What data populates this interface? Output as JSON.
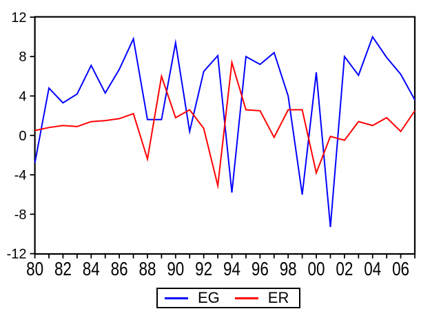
{
  "chart_data": {
    "type": "line",
    "title": "",
    "xlabel": "",
    "ylabel": "",
    "x": [
      1980,
      1981,
      1982,
      1983,
      1984,
      1985,
      1986,
      1987,
      1988,
      1989,
      1990,
      1991,
      1992,
      1993,
      1994,
      1995,
      1996,
      1997,
      1998,
      1999,
      2000,
      2001,
      2002,
      2003,
      2004,
      2005,
      2006,
      2007
    ],
    "x_tick_labels": [
      "80",
      "82",
      "84",
      "86",
      "88",
      "90",
      "92",
      "94",
      "96",
      "98",
      "00",
      "02",
      "04",
      "06"
    ],
    "y_ticks": [
      12,
      8,
      4,
      0,
      -4,
      -8,
      -12
    ],
    "y_tick_labels": [
      "12",
      "8",
      "4",
      "0",
      "-4",
      "-8",
      "-12"
    ],
    "ylim": [
      -12,
      12
    ],
    "grid": false,
    "legend_position": "bottom-center",
    "series": [
      {
        "name": "EG",
        "color": "#0000ff",
        "values": [
          -2.8,
          4.8,
          3.3,
          4.2,
          7.1,
          4.3,
          6.7,
          9.8,
          1.6,
          1.6,
          9.4,
          0.4,
          6.5,
          8.1,
          -5.8,
          8.0,
          7.2,
          8.4,
          4.0,
          -6.0,
          6.4,
          -9.3,
          8.0,
          6.1,
          10.0,
          7.9,
          6.2,
          3.6
        ]
      },
      {
        "name": "ER",
        "color": "#ff0000",
        "values": [
          0.5,
          0.8,
          1.0,
          0.9,
          1.4,
          1.5,
          1.7,
          2.2,
          -2.4,
          6.0,
          1.8,
          2.6,
          0.7,
          -5.1,
          7.4,
          2.6,
          2.5,
          -0.2,
          2.6,
          2.6,
          -3.8,
          -0.1,
          -0.5,
          1.4,
          1.0,
          1.8,
          0.4,
          2.5
        ]
      }
    ]
  },
  "legend": {
    "items": [
      {
        "label": "EG",
        "color": "#0000ff"
      },
      {
        "label": "ER",
        "color": "#ff0000"
      }
    ]
  }
}
